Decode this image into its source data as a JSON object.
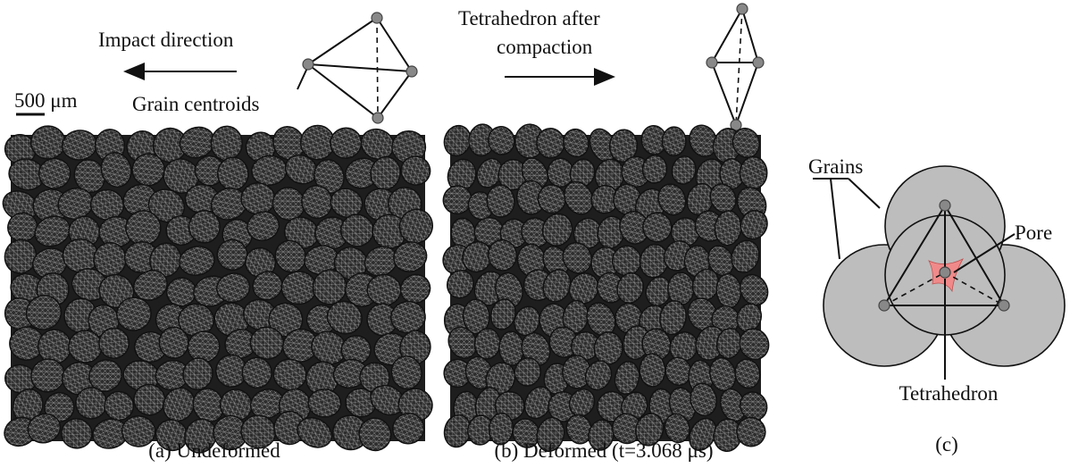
{
  "panel_a": {
    "annotation": "Impact direction",
    "scale_bar": "500 μm",
    "callout": "Grain centroids",
    "caption": "(a) Undeformed"
  },
  "panel_b": {
    "annotation_lines": [
      "Tetrahedron after",
      "compaction"
    ],
    "caption": "(b) Deformed (t=3.068 μs)"
  },
  "panel_c": {
    "grains_label": "Grains",
    "pore_label": "Pore",
    "tetrahedron_label": "Tetrahedron",
    "caption": "(c)"
  }
}
